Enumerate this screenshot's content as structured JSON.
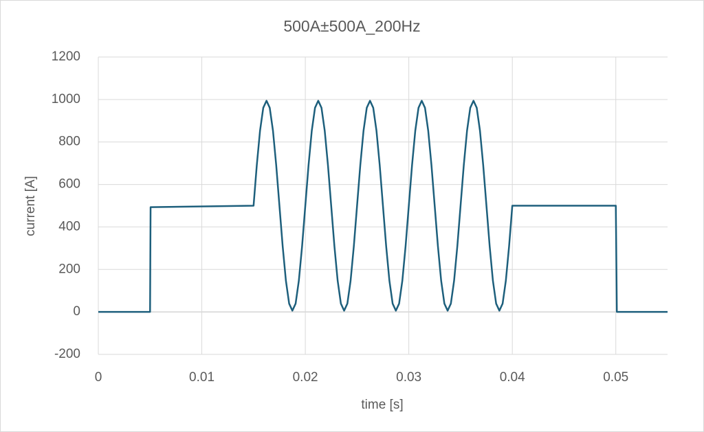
{
  "chart_data": {
    "type": "line",
    "title": "500A±500A_200Hz",
    "xlabel": "time [s]",
    "ylabel": "current [A]",
    "x": [
      0,
      0.005,
      0.00505,
      0.015,
      0.0153125,
      0.015625,
      0.0159375,
      0.01625,
      0.0165625,
      0.016875,
      0.0171875,
      0.0175,
      0.0178125,
      0.018125,
      0.0184375,
      0.01875,
      0.0190625,
      0.019375,
      0.0196875,
      0.02,
      0.0203125,
      0.020625,
      0.0209375,
      0.02125,
      0.0215625,
      0.021875,
      0.0221875,
      0.0225,
      0.0228125,
      0.023125,
      0.0234375,
      0.02375,
      0.0240625,
      0.024375,
      0.0246875,
      0.025,
      0.0253125,
      0.025625,
      0.0259375,
      0.02625,
      0.0265625,
      0.026875,
      0.0271875,
      0.0275,
      0.0278125,
      0.028125,
      0.0284375,
      0.02875,
      0.0290625,
      0.029375,
      0.0296875,
      0.03,
      0.0303125,
      0.030625,
      0.0309375,
      0.03125,
      0.0315625,
      0.031875,
      0.0321875,
      0.0325,
      0.0328125,
      0.033125,
      0.0334375,
      0.03375,
      0.0340625,
      0.034375,
      0.0346875,
      0.035,
      0.0353125,
      0.035625,
      0.0359375,
      0.03625,
      0.0365625,
      0.036875,
      0.0371875,
      0.0375,
      0.0378125,
      0.038125,
      0.0384375,
      0.03875,
      0.0390625,
      0.039375,
      0.0396875,
      0.04,
      0.05,
      0.0501,
      0.055
    ],
    "values": [
      0,
      0,
      493,
      500,
      691,
      853,
      961,
      994,
      961,
      853,
      691,
      500,
      309,
      147,
      39,
      6,
      39,
      147,
      309,
      500,
      691,
      853,
      961,
      994,
      961,
      853,
      691,
      500,
      309,
      147,
      39,
      6,
      39,
      147,
      309,
      500,
      691,
      853,
      961,
      994,
      961,
      853,
      691,
      500,
      309,
      147,
      39,
      6,
      39,
      147,
      309,
      500,
      691,
      853,
      961,
      994,
      961,
      853,
      691,
      500,
      309,
      147,
      39,
      6,
      39,
      147,
      309,
      500,
      691,
      853,
      961,
      994,
      961,
      853,
      691,
      500,
      309,
      147,
      39,
      6,
      39,
      147,
      309,
      500,
      500,
      0,
      0
    ],
    "color": "#1d5f7c",
    "xlim": [
      0,
      0.055
    ],
    "xticks": [
      0,
      0.01,
      0.02,
      0.03,
      0.04,
      0.05
    ],
    "ylim": [
      -200,
      1200
    ],
    "yticks": [
      -200,
      0,
      200,
      400,
      600,
      800,
      1000,
      1200
    ],
    "grid": true
  }
}
